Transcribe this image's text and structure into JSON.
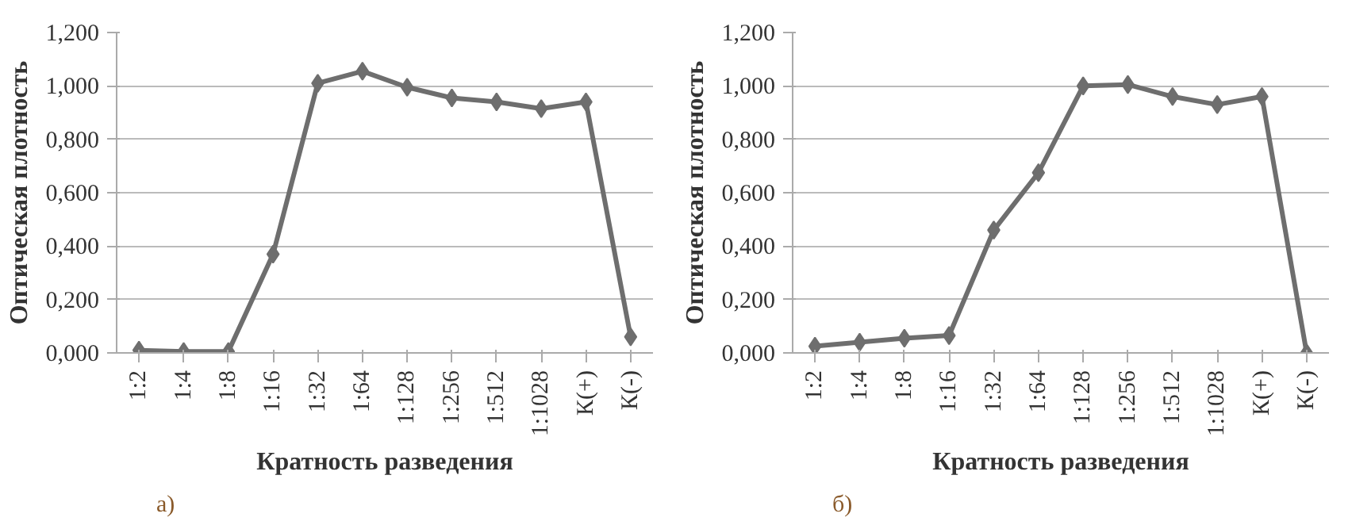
{
  "chart_data": [
    {
      "type": "line",
      "categories": [
        "1:2",
        "1:4",
        "1:8",
        "1:16",
        "1:32",
        "1:64",
        "1:128",
        "1:256",
        "1:512",
        "1:1028",
        "К(+)",
        "К(-)"
      ],
      "xlabel": "Кратность разведения",
      "ylabel": "Оптическая плотность",
      "annotations": [
        "а)"
      ],
      "series": [
        {
          "color": "#6e6e6e",
          "values": [
            0.01,
            0.005,
            0.005,
            0.37,
            1.01,
            1.055,
            0.995,
            0.955,
            0.94,
            0.915,
            0.94,
            0.06
          ]
        }
      ],
      "ylim": [
        0,
        1.2
      ],
      "yticks": [
        {
          "value": 0,
          "label": "0,000"
        },
        {
          "value": 0.2,
          "label": "0,200"
        },
        {
          "value": 0.4,
          "label": "0,400"
        },
        {
          "value": 0.6,
          "label": "0,600"
        },
        {
          "value": 0.8,
          "label": "0,800"
        },
        {
          "value": 1.0,
          "label": "1,000"
        },
        {
          "value": 1.2,
          "label": "1,200"
        }
      ],
      "grid": "y",
      "marker": "diamond"
    },
    {
      "type": "line",
      "categories": [
        "1:2",
        "1:4",
        "1:8",
        "1:16",
        "1:32",
        "1:64",
        "1:128",
        "1:256",
        "1:512",
        "1:1028",
        "К(+)",
        "К(-)"
      ],
      "xlabel": "Кратность разведения",
      "ylabel": "Оптическая плотность",
      "annotations": [
        "б)"
      ],
      "series": [
        {
          "color": "#6e6e6e",
          "values": [
            0.025,
            0.04,
            0.055,
            0.065,
            0.46,
            0.675,
            1.0,
            1.005,
            0.96,
            0.93,
            0.96,
            0.0
          ]
        }
      ],
      "ylim": [
        0,
        1.2
      ],
      "yticks": [
        {
          "value": 0,
          "label": "0,000"
        },
        {
          "value": 0.2,
          "label": "0,200"
        },
        {
          "value": 0.4,
          "label": "0,400"
        },
        {
          "value": 0.6,
          "label": "0,600"
        },
        {
          "value": 0.8,
          "label": "0,800"
        },
        {
          "value": 1.0,
          "label": "1,000"
        },
        {
          "value": 1.2,
          "label": "1,200"
        }
      ],
      "grid": "y",
      "marker": "diamond"
    }
  ]
}
